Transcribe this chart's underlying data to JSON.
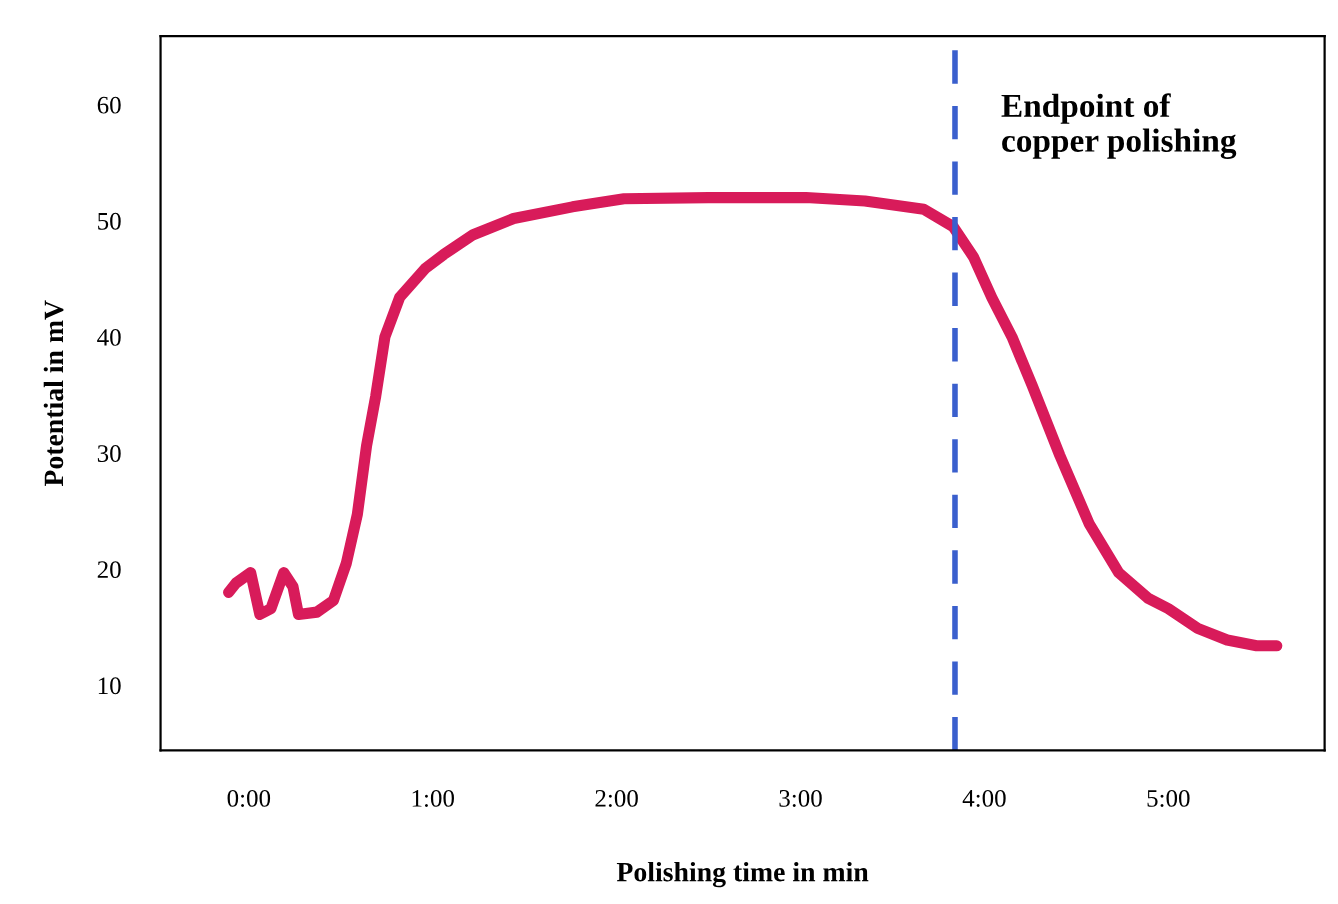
{
  "chart_data": {
    "type": "line",
    "xlabel": "Polishing time in min",
    "ylabel": "Potential in mV",
    "series": [
      {
        "color": "#d81b5a",
        "x": [
          -0.11,
          -0.07,
          0.01,
          0.06,
          0.12,
          0.19,
          0.24,
          0.27,
          0.37,
          0.46,
          0.53,
          0.59,
          0.64,
          0.69,
          0.74,
          0.82,
          0.96,
          1.06,
          1.22,
          1.44,
          1.76,
          2.04,
          2.5,
          3.03,
          3.35,
          3.67,
          3.83,
          3.94,
          4.04,
          4.15,
          4.26,
          4.41,
          4.57,
          4.73,
          4.89,
          5.0,
          5.16,
          5.32,
          5.48,
          5.59
        ],
        "values": [
          18,
          18.8,
          19.7,
          16.1,
          16.6,
          19.7,
          18.5,
          16.1,
          16.3,
          17.3,
          20.5,
          24.7,
          30.6,
          34.9,
          40,
          43.4,
          45.9,
          47.1,
          48.8,
          50.2,
          51.2,
          51.9,
          52,
          52,
          51.7,
          51,
          49.5,
          46.9,
          43.4,
          40,
          35.8,
          29.8,
          23.9,
          19.7,
          17.5,
          16.6,
          14.9,
          13.9,
          13.4,
          13.4
        ]
      }
    ],
    "xlim": [
      -0.48,
      5.85
    ],
    "ylim": [
      4.4,
      65.9
    ],
    "xticks": [
      {
        "value": 0,
        "label": "0:00"
      },
      {
        "value": 1,
        "label": "1:00"
      },
      {
        "value": 2,
        "label": "2:00"
      },
      {
        "value": 3,
        "label": "3:00"
      },
      {
        "value": 4,
        "label": "4:00"
      },
      {
        "value": 5,
        "label": "5:00"
      }
    ],
    "yticks": [
      10,
      20,
      30,
      40,
      50,
      60
    ],
    "ref_lines": [
      {
        "axis": "x",
        "value": 3.84,
        "label": "Endpoint of\ncopper polishing",
        "color": "#3a5fcd",
        "line_style": "dashed"
      }
    ],
    "grid": false,
    "marker": "none",
    "line_style": "solid"
  }
}
